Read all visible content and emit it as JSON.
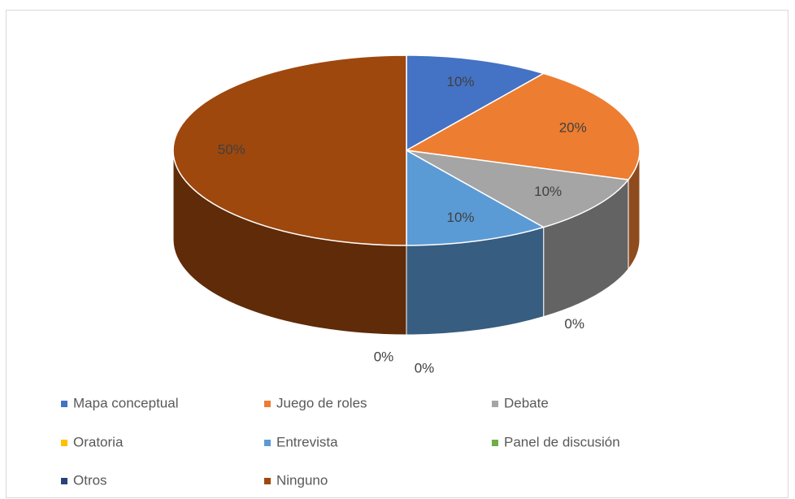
{
  "chart_data": {
    "type": "pie",
    "categories": [
      "Mapa conceptual",
      "Juego de roles",
      "Debate",
      "Oratoria",
      "Entrevista",
      "Panel de discusión",
      "Otros",
      "Ninguno"
    ],
    "values": [
      10,
      20,
      10,
      0,
      10,
      0,
      0,
      50
    ],
    "value_labels": [
      "10%",
      "20%",
      "10%",
      "0%",
      "10%",
      "0%",
      "0%",
      "50%"
    ],
    "colors": [
      "#4472c4",
      "#ed7d31",
      "#a5a5a5",
      "#ffc000",
      "#5b9bd5",
      "#70ad47",
      "#264478",
      "#9e480e"
    ],
    "legend": "bottom"
  }
}
